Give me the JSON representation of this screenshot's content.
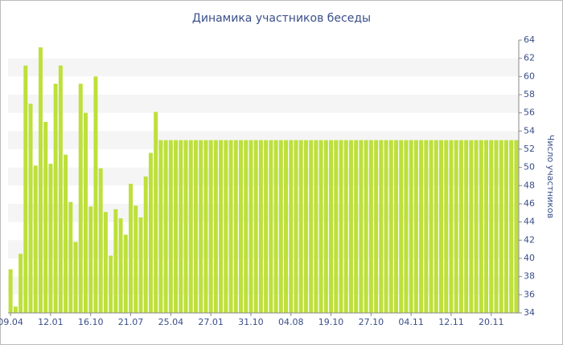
{
  "chart_data": {
    "type": "bar",
    "title": "Динамика участников беседы",
    "y_label": "Число участников",
    "categories": [
      "09.04",
      null,
      null,
      null,
      null,
      null,
      null,
      null,
      "12.01",
      null,
      null,
      null,
      null,
      null,
      null,
      null,
      "16.10",
      null,
      null,
      null,
      null,
      null,
      null,
      null,
      "21.07",
      null,
      null,
      null,
      null,
      null,
      null,
      null,
      "25.04",
      null,
      null,
      null,
      null,
      null,
      null,
      null,
      "27.01",
      null,
      null,
      null,
      null,
      null,
      null,
      null,
      "31.10",
      null,
      null,
      null,
      null,
      null,
      null,
      null,
      "04.08",
      null,
      null,
      null,
      null,
      null,
      null,
      null,
      "19.10",
      null,
      null,
      null,
      null,
      null,
      null,
      null,
      "27.10",
      null,
      null,
      null,
      null,
      null,
      null,
      null,
      "04.11",
      null,
      null,
      null,
      null,
      null,
      null,
      null,
      "12.11",
      null,
      null,
      null,
      null,
      null,
      null,
      null,
      "20.11",
      null,
      null,
      null,
      null,
      null
    ],
    "values": [
      38.8,
      34.7,
      40.5,
      61.2,
      57.0,
      50.2,
      63.2,
      55.0,
      50.4,
      59.2,
      61.2,
      51.4,
      46.2,
      41.8,
      59.2,
      56.0,
      45.7,
      60.0,
      49.9,
      45.1,
      40.3,
      45.4,
      44.4,
      42.6,
      48.2,
      45.8,
      44.5,
      49.0,
      51.6,
      56.1,
      53,
      53,
      53,
      53,
      53,
      53,
      53,
      53,
      53,
      53,
      53,
      53,
      53,
      53,
      53,
      53,
      53,
      53,
      53,
      53,
      53,
      53,
      53,
      53,
      53,
      53,
      53,
      53,
      53,
      53,
      53,
      53,
      53,
      53,
      53,
      53,
      53,
      53,
      53,
      53,
      53,
      53,
      53,
      53,
      53,
      53,
      53,
      53,
      53,
      53,
      53,
      53,
      53,
      53,
      53,
      53,
      53,
      53,
      53,
      53,
      53,
      53,
      53,
      53,
      53,
      53,
      53,
      53,
      53,
      53,
      53,
      53
    ],
    "color": "#bde03a",
    "ylim": [
      34,
      64
    ],
    "yticks": [
      34,
      36,
      38,
      40,
      42,
      44,
      46,
      48,
      50,
      52,
      54,
      56,
      58,
      60,
      62,
      64
    ],
    "grid": "bands",
    "y_axis_side": "right"
  }
}
